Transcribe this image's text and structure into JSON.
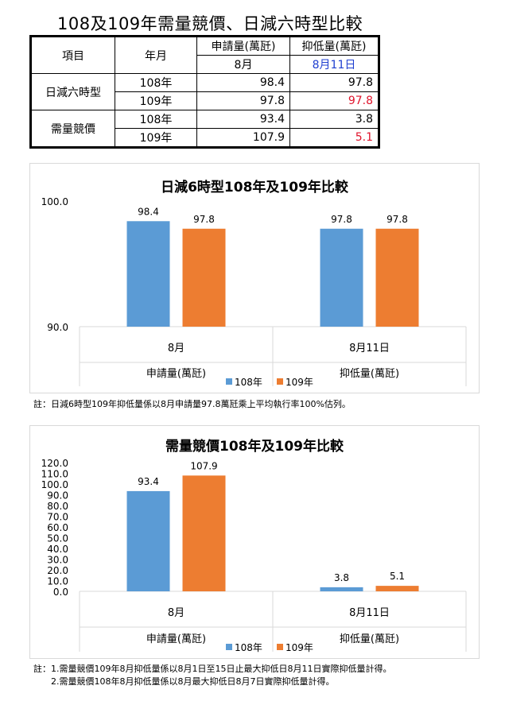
{
  "title": "108及109年需量競價、日減六時型比較",
  "table": {
    "col_item": "項目",
    "col_month": "年月",
    "col_apply": "申請量(萬瓩)",
    "col_suppress": "抑低量(萬瓩)",
    "sub_apply": "8月",
    "sub_suppress": "8月11日",
    "groups": [
      {
        "name": "日減六時型",
        "rows": [
          {
            "year": "108年",
            "apply": "98.4",
            "suppress": "97.8"
          },
          {
            "year": "109年",
            "apply": "97.8",
            "suppress": "97.8"
          }
        ]
      },
      {
        "name": "需量競價",
        "rows": [
          {
            "year": "108年",
            "apply": "93.4",
            "suppress": "3.8"
          },
          {
            "year": "109年",
            "apply": "107.9",
            "suppress": "5.1"
          }
        ]
      }
    ]
  },
  "colors": {
    "s108": "#5b9bd5",
    "s109": "#ed7d31",
    "red": "#e0132b",
    "blue": "#1f3fd0"
  },
  "chart_data": [
    {
      "type": "bar",
      "title": "日減6時型108年及109年比較",
      "categories": [
        "8月",
        "8月11日"
      ],
      "group_labels": [
        "申請量(萬瓩)",
        "抑低量(萬瓩)"
      ],
      "series": [
        {
          "name": "108年",
          "values": [
            98.4,
            97.8
          ]
        },
        {
          "name": "109年",
          "values": [
            97.8,
            97.8
          ]
        }
      ],
      "ylim": [
        90,
        100
      ],
      "yticks": [
        "90.0",
        "100.0"
      ],
      "legend": "bottom"
    },
    {
      "type": "bar",
      "title": "需量競價108年及109年比較",
      "categories": [
        "8月",
        "8月11日"
      ],
      "group_labels": [
        "申請量(萬瓩)",
        "抑低量(萬瓩)"
      ],
      "series": [
        {
          "name": "108年",
          "values": [
            93.4,
            3.8
          ]
        },
        {
          "name": "109年",
          "values": [
            107.9,
            5.1
          ]
        }
      ],
      "ylim": [
        0,
        120
      ],
      "yticks": [
        "0.0",
        "10.0",
        "20.0",
        "30.0",
        "40.0",
        "50.0",
        "60.0",
        "70.0",
        "80.0",
        "90.0",
        "100.0",
        "110.0",
        "120.0"
      ],
      "legend": "bottom"
    }
  ],
  "notes": {
    "note1": "註：日減6時型109年抑低量係以8月申請量97.8萬瓩乘上平均執行率100%估列。",
    "note2a": "註：1.需量競價109年8月抑低量係以8月1日至15日止最大抑低日8月11日實際抑低量計得。",
    "note2b": "2.需量競價108年8月抑低量係以8月最大抑低日8月7日實際抑低量計得。"
  }
}
